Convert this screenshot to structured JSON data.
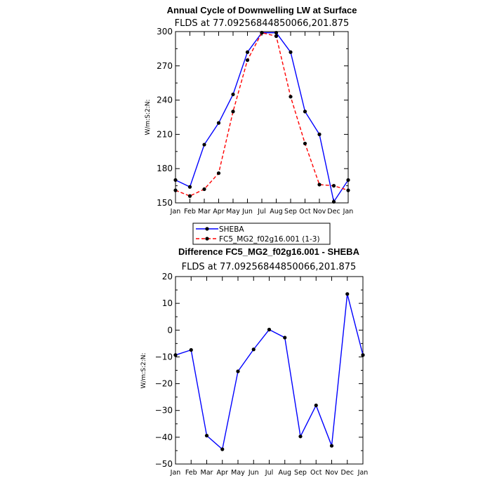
{
  "colors": {
    "sheba": "#0000ff",
    "model": "#ff0000",
    "marker": "#000000"
  },
  "chart_data": [
    {
      "type": "line",
      "title": "Annual Cycle of Downwelling LW at Surface",
      "subtitle": "FLDS at 77.09256844850066,201.875",
      "ylabel": "W/m:S:2:N:",
      "categories": [
        "Jan",
        "Feb",
        "Mar",
        "Apr",
        "May",
        "Jun",
        "Jul",
        "Aug",
        "Sep",
        "Oct",
        "Nov",
        "Dec",
        "Jan"
      ],
      "ylim": [
        150,
        300
      ],
      "yticks": [
        "150",
        "180",
        "210",
        "240",
        "270",
        "300"
      ],
      "legend_position": "bottom",
      "series": [
        {
          "name": "SHEBA",
          "style": "solid",
          "values": [
            170,
            164,
            201,
            220,
            245,
            282,
            299,
            299,
            282,
            230,
            210,
            151,
            170
          ]
        },
        {
          "name": "FC5_MG2_f02g16.001 (1-3)",
          "style": "dashed",
          "values": [
            161,
            156,
            162,
            176,
            230,
            275,
            299,
            296,
            243,
            202,
            166,
            165,
            161
          ]
        }
      ]
    },
    {
      "type": "line",
      "title": "Difference FC5_MG2_f02g16.001 - SHEBA",
      "subtitle": "FLDS at 77.09256844850066,201.875",
      "ylabel": "W/m:S:2:N:",
      "categories": [
        "Jan",
        "Feb",
        "Mar",
        "Apr",
        "May",
        "Jun",
        "Jul",
        "Aug",
        "Sep",
        "Oct",
        "Nov",
        "Dec",
        "Jan"
      ],
      "ylim": [
        -50,
        20
      ],
      "yticks": [
        "−50",
        "−40",
        "−30",
        "−20",
        "−10",
        "0",
        "10",
        "20"
      ],
      "series": [
        {
          "style": "solid",
          "values": [
            -9.3,
            -7.4,
            -39.4,
            -44.5,
            -15.4,
            -7.2,
            0.2,
            -2.8,
            -39.7,
            -28.1,
            -43.2,
            13.5,
            -9.3
          ]
        }
      ]
    }
  ]
}
